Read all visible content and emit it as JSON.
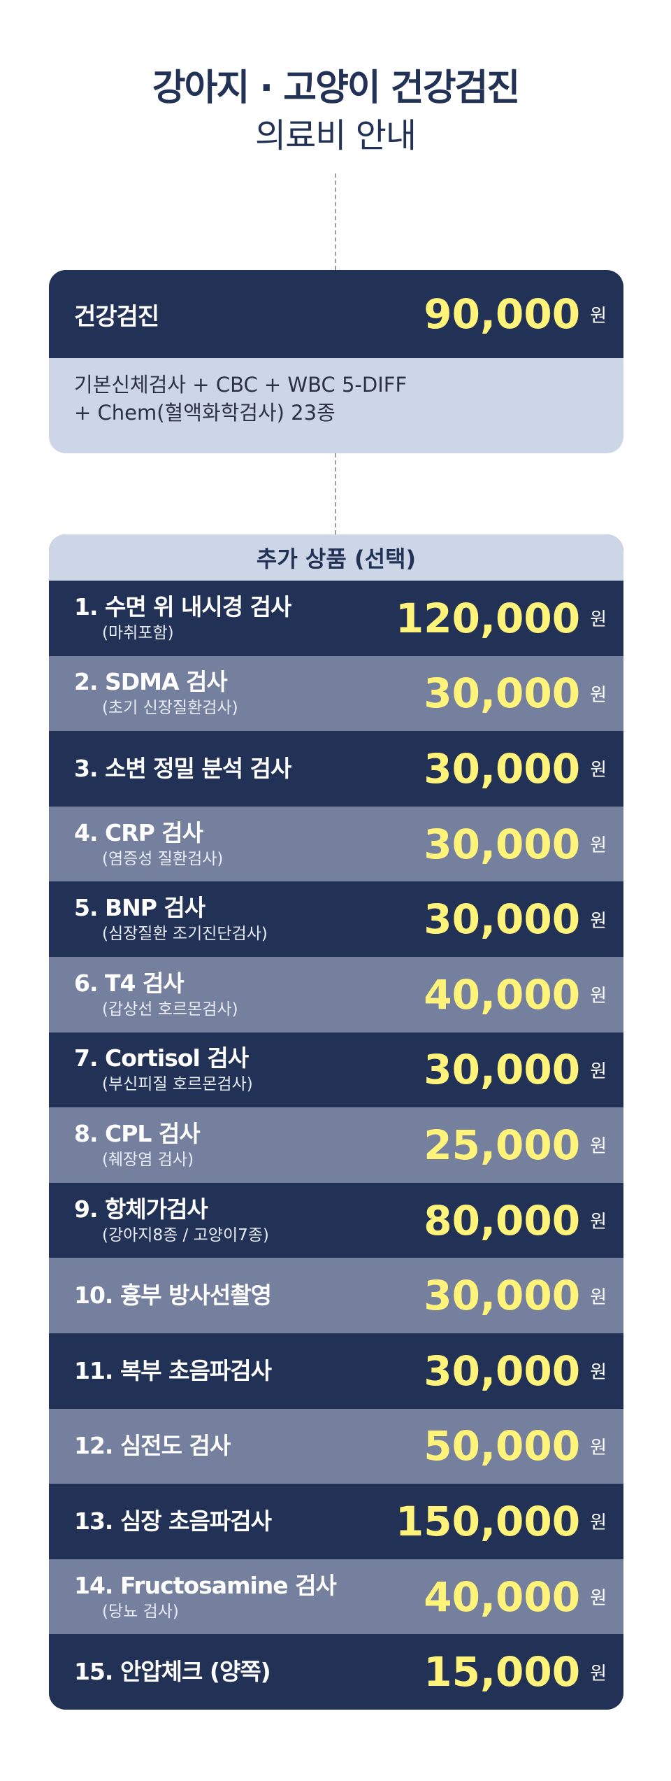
{
  "header": {
    "title_main": "강아지 · 고양이 건강검진",
    "title_sub": "의료비 안내"
  },
  "basic": {
    "name": "건강검진",
    "price": "90,000",
    "currency": "원",
    "desc_line1": "기본신체검사 + CBC + WBC 5-DIFF",
    "desc_line2": "+ Chem(혈액화학검사) 23종"
  },
  "extras": {
    "heading": "추가 상품 (선택)",
    "currency": "원",
    "items": [
      {
        "name": "1. 수면 위 내시경 검사",
        "note": "(마취포함)",
        "price": "120,000"
      },
      {
        "name": "2. SDMA 검사",
        "note": "(초기 신장질환검사)",
        "price": "30,000"
      },
      {
        "name": "3. 소변 정밀 분석 검사",
        "note": "",
        "price": "30,000"
      },
      {
        "name": "4. CRP 검사",
        "note": "(염증성 질환검사)",
        "price": "30,000"
      },
      {
        "name": "5. BNP 검사",
        "note": "(심장질환 조기진단검사)",
        "price": "30,000"
      },
      {
        "name": "6. T4 검사",
        "note": "(갑상선 호르몬검사)",
        "price": "40,000"
      },
      {
        "name": "7. Cortisol 검사",
        "note": "(부신피질 호르몬검사)",
        "price": "30,000"
      },
      {
        "name": "8. CPL 검사",
        "note": "(췌장염 검사)",
        "price": "25,000"
      },
      {
        "name": "9. 항체가검사",
        "note": "(강아지8종 / 고양이7종)",
        "price": "80,000"
      },
      {
        "name": "10. 흉부 방사선촬영",
        "note": "",
        "price": "30,000"
      },
      {
        "name": "11. 복부 초음파검사",
        "note": "",
        "price": "30,000"
      },
      {
        "name": "12. 심전도 검사",
        "note": "",
        "price": "50,000"
      },
      {
        "name": "13. 심장 초음파검사",
        "note": "",
        "price": "150,000"
      },
      {
        "name": "14. Fructosamine 검사",
        "note": "(당뇨 검사)",
        "price": "40,000"
      },
      {
        "name": "15. 안압체크 (양쪽)",
        "note": "",
        "price": "15,000"
      }
    ]
  },
  "colors": {
    "navy": "#223156",
    "slate": "#757f9e",
    "pale_blue": "#cdd6e6",
    "price_yellow": "#fff37a"
  }
}
